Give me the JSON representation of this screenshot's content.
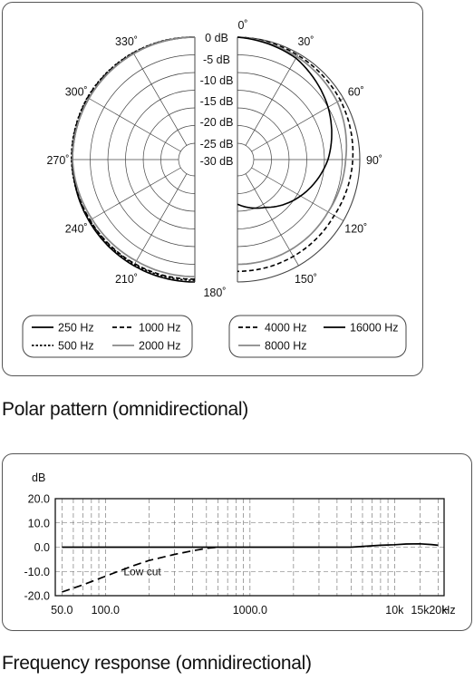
{
  "polar": {
    "caption": "Polar pattern (omnidirectional)",
    "chart_data": {
      "type": "polar",
      "db_labels": [
        "0 dB",
        "-5 dB",
        "-10 dB",
        "-15 dB",
        "-20 dB",
        "-25 dB",
        "-30 dB"
      ],
      "db_rings": [
        0,
        -5,
        -10,
        -15,
        -20,
        -25,
        -30
      ],
      "angle_labels": [
        {
          "deg": 0,
          "text": "0˚"
        },
        {
          "deg": 30,
          "text": "30˚"
        },
        {
          "deg": 60,
          "text": "60˚"
        },
        {
          "deg": 90,
          "text": "90˚"
        },
        {
          "deg": 120,
          "text": "120˚"
        },
        {
          "deg": 150,
          "text": "150˚"
        },
        {
          "deg": 180,
          "text": "180˚"
        },
        {
          "deg": 210,
          "text": "210˚"
        },
        {
          "deg": 240,
          "text": "240˚"
        },
        {
          "deg": 270,
          "text": "270˚"
        },
        {
          "deg": 300,
          "text": "300˚"
        },
        {
          "deg": 330,
          "text": "330˚"
        }
      ],
      "legend_left": [
        {
          "name": "250 Hz",
          "style": "solid",
          "color": "#000000"
        },
        {
          "name": "1000 Hz",
          "style": "dashed",
          "color": "#000000"
        },
        {
          "name": "500 Hz",
          "style": "dotted",
          "color": "#000000"
        },
        {
          "name": "2000 Hz",
          "style": "solid",
          "color": "#888888"
        }
      ],
      "legend_right": [
        {
          "name": "4000 Hz",
          "style": "dashed",
          "color": "#000000"
        },
        {
          "name": "16000 Hz",
          "style": "solid",
          "color": "#000000"
        },
        {
          "name": "8000 Hz",
          "style": "solid",
          "color": "#888888"
        }
      ],
      "series_left": [
        {
          "name": "250 Hz",
          "style": "solid",
          "color": "#000000",
          "angles": [
            180,
            210,
            240,
            270,
            300,
            330,
            360
          ],
          "db": [
            0,
            0,
            0,
            0,
            0,
            0,
            0
          ]
        },
        {
          "name": "500 Hz",
          "style": "dotted",
          "color": "#000000",
          "angles": [
            180,
            210,
            240,
            270,
            300,
            330,
            360
          ],
          "db": [
            -0.5,
            -0.4,
            -0.3,
            0.3,
            0.5,
            0.3,
            0
          ]
        },
        {
          "name": "1000 Hz",
          "style": "dashed",
          "color": "#000000",
          "angles": [
            180,
            210,
            240,
            270,
            300,
            330,
            360
          ],
          "db": [
            -0.8,
            -0.6,
            -0.4,
            0.2,
            0.4,
            0.2,
            0
          ]
        },
        {
          "name": "2000 Hz",
          "style": "solid",
          "color": "#888888",
          "angles": [
            180,
            210,
            240,
            270,
            300,
            330,
            360
          ],
          "db": [
            -1.5,
            -1.5,
            -1,
            0,
            0,
            0,
            0
          ]
        }
      ],
      "series_right": [
        {
          "name": "4000 Hz",
          "style": "dashed",
          "color": "#000000",
          "angles": [
            0,
            30,
            60,
            90,
            120,
            150,
            180
          ],
          "db": [
            0,
            -0.5,
            -1,
            -2,
            -3,
            -3,
            -3
          ]
        },
        {
          "name": "8000 Hz",
          "style": "solid",
          "color": "#888888",
          "angles": [
            0,
            30,
            60,
            90,
            120,
            150,
            180
          ],
          "db": [
            0,
            -1,
            -2,
            -4,
            -5,
            -5,
            -5
          ]
        },
        {
          "name": "16000 Hz",
          "style": "solid",
          "color": "#000000",
          "angles": [
            0,
            30,
            60,
            90,
            120,
            150,
            180
          ],
          "db": [
            0,
            -1.5,
            -5,
            -9,
            -14,
            -19,
            -22
          ]
        }
      ]
    }
  },
  "frequency": {
    "caption": "Frequency response (omnidirectional)",
    "chart_data": {
      "type": "line",
      "ylabel": "dB",
      "xscale": "log",
      "xlim": [
        45,
        22000
      ],
      "ylim": [
        -20,
        20
      ],
      "yticks": [
        "20.0",
        "10.0",
        "0.0",
        "-10.0",
        "-20.0"
      ],
      "ytick_values": [
        20,
        10,
        0,
        -10,
        -20
      ],
      "xticks": [
        {
          "v": 50,
          "text": "50.0"
        },
        {
          "v": 100,
          "text": "100.0"
        },
        {
          "v": 1000,
          "text": "1000.0"
        },
        {
          "v": 10000,
          "text": "10k"
        },
        {
          "v": 15000,
          "text": "15k"
        },
        {
          "v": 20000,
          "text": "20k"
        }
      ],
      "xunit": "Hz",
      "annotation": "Low cut",
      "series": [
        {
          "name": "",
          "style": "solid",
          "color": "#000000",
          "x": [
            50,
            100,
            200,
            500,
            1000,
            2000,
            5000,
            8000,
            10000,
            12000,
            15000,
            18000,
            20000
          ],
          "y": [
            0,
            0,
            0,
            0,
            0,
            0,
            0,
            0.8,
            1.0,
            1.3,
            1.4,
            1.1,
            0.8
          ]
        },
        {
          "name": "",
          "style": "dashed",
          "color": "#000000",
          "x": [
            50,
            70,
            100,
            150,
            200,
            300,
            400,
            500,
            600
          ],
          "y": [
            -18.5,
            -15.5,
            -12,
            -8,
            -5.5,
            -3,
            -1.5,
            -0.5,
            0
          ]
        }
      ]
    }
  }
}
